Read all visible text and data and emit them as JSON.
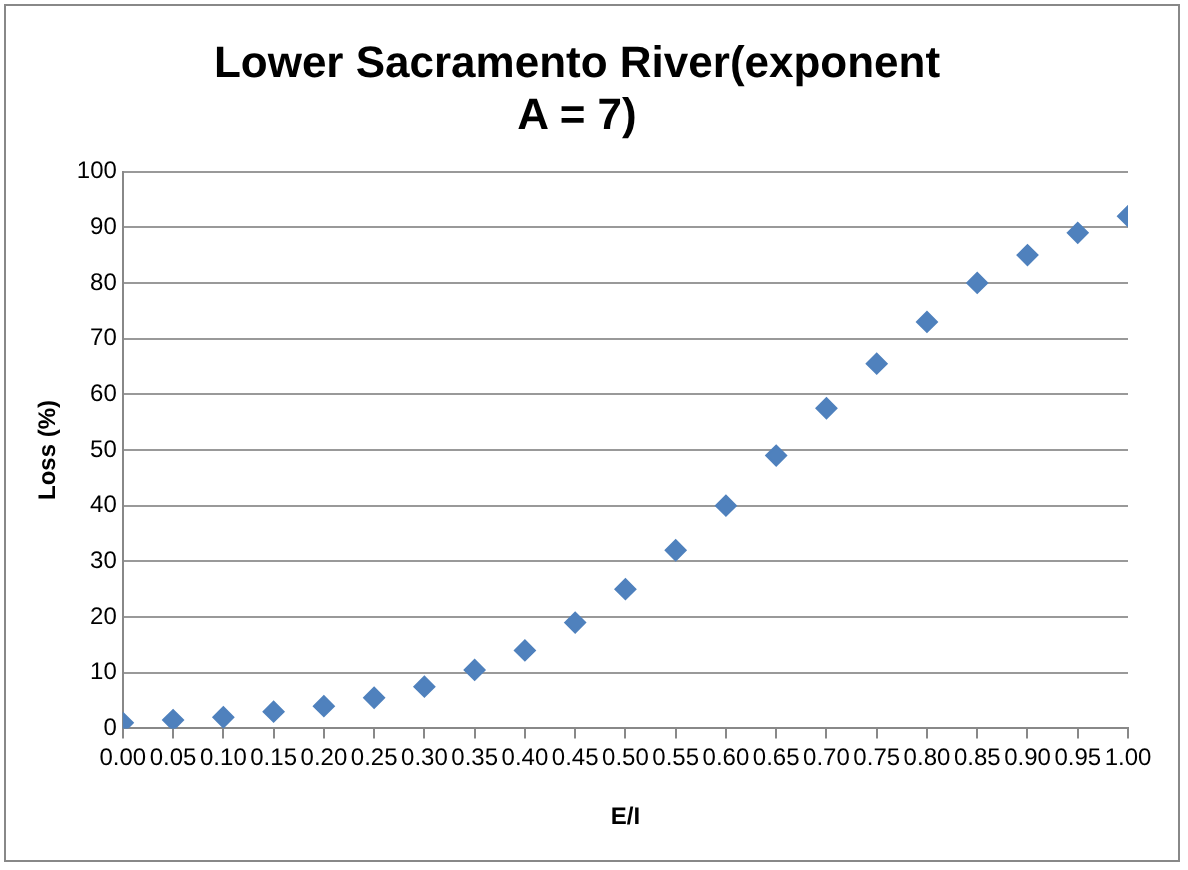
{
  "chart_data": {
    "type": "scatter",
    "title": "Lower Sacramento River(exponent A = 7)",
    "xlabel": "E/I",
    "ylabel": "Loss (%)",
    "x": [
      0,
      0.05,
      0.1,
      0.15,
      0.2,
      0.25,
      0.3,
      0.35,
      0.4,
      0.45,
      0.5,
      0.55,
      0.6,
      0.65,
      0.7,
      0.75,
      0.8,
      0.85,
      0.9,
      0.95,
      1
    ],
    "series": [
      {
        "color": "#4f81bd",
        "values": [
          1,
          1.5,
          2,
          3,
          4,
          5.5,
          7.5,
          10.5,
          14,
          19,
          25,
          32,
          40,
          49,
          57.5,
          65.5,
          73,
          80,
          85,
          89,
          92
        ]
      }
    ],
    "xlim": [
      0,
      1
    ],
    "xticks": [
      {
        "value": 0,
        "label": "0.00"
      },
      {
        "value": 0.05,
        "label": "0.05"
      },
      {
        "value": 0.1,
        "label": "0.10"
      },
      {
        "value": 0.15,
        "label": "0.15"
      },
      {
        "value": 0.2,
        "label": "0.20"
      },
      {
        "value": 0.25,
        "label": "0.25"
      },
      {
        "value": 0.3,
        "label": "0.30"
      },
      {
        "value": 0.35,
        "label": "0.35"
      },
      {
        "value": 0.4,
        "label": "0.40"
      },
      {
        "value": 0.45,
        "label": "0.45"
      },
      {
        "value": 0.5,
        "label": "0.50"
      },
      {
        "value": 0.55,
        "label": "0.55"
      },
      {
        "value": 0.6,
        "label": "0.60"
      },
      {
        "value": 0.65,
        "label": "0.65"
      },
      {
        "value": 0.7,
        "label": "0.70"
      },
      {
        "value": 0.75,
        "label": "0.75"
      },
      {
        "value": 0.8,
        "label": "0.80"
      },
      {
        "value": 0.85,
        "label": "0.85"
      },
      {
        "value": 0.9,
        "label": "0.90"
      },
      {
        "value": 0.95,
        "label": "0.95"
      },
      {
        "value": 1,
        "label": "1.00"
      }
    ],
    "ylim": [
      0,
      100
    ],
    "yticks": [
      0,
      10,
      20,
      30,
      40,
      50,
      60,
      70,
      80,
      90,
      100
    ],
    "grid": "y",
    "legend": false,
    "marker": "diamond"
  }
}
